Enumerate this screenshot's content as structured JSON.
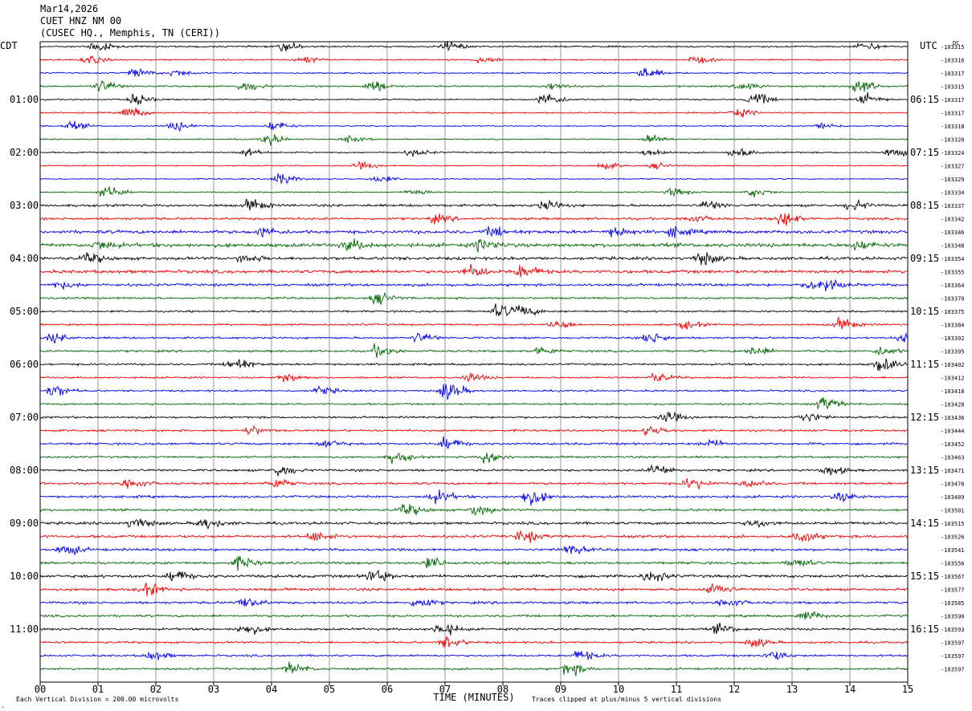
{
  "header": {
    "date": "Mar14,2026",
    "station": "CUET HNZ NM 00",
    "location": "(CUSEC HQ., Memphis, TN (CERI))"
  },
  "left_tz": "CDT",
  "right_tz": "UTC",
  "dc_label": "DC",
  "footer": {
    "scale_note": "Each Vertical Division =  200.00 microvolts",
    "clip_note": "Traces clipped at plus/minus 5 vertical divisions",
    "small_mark": "‸"
  },
  "colors": {
    "trace_cycle": [
      "#000000",
      "#ee0000",
      "#0000ee",
      "#006600"
    ],
    "grid": "#808080",
    "text": "#000000"
  },
  "chart_data": {
    "type": "line",
    "subtype": "helicorder",
    "xlabel": "TIME (MINUTES)",
    "x_range": [
      0,
      15
    ],
    "x_ticks": [
      "00",
      "01",
      "02",
      "03",
      "04",
      "05",
      "06",
      "07",
      "08",
      "09",
      "10",
      "11",
      "12",
      "13",
      "14",
      "15"
    ],
    "trace_count": 48,
    "minutes_per_trace": 15,
    "left_hour_labels": [
      "01:00",
      "02:00",
      "03:00",
      "04:00",
      "05:00",
      "06:00",
      "07:00",
      "08:00",
      "09:00",
      "10:00",
      "11:00"
    ],
    "right_hour_labels": [
      "06:15",
      "07:15",
      "08:15",
      "09:15",
      "10:15",
      "11:15",
      "12:15",
      "13:15",
      "14:15",
      "15:15",
      "16:15"
    ],
    "dc_offsets": [
      "-103315",
      "-103316",
      "-103317",
      "-103315",
      "-103317",
      "-103317",
      "-103318",
      "-103320",
      "-103324",
      "-103327",
      "-103329",
      "-103334",
      "-103337",
      "-103342",
      "-103346",
      "-103348",
      "-103354",
      "-103355",
      "-103364",
      "-103370",
      "-103375",
      "-103384",
      "-103392",
      "-103395",
      "-103402",
      "-103412",
      "-103418",
      "-103428",
      "-103436",
      "-103444",
      "-103452",
      "-103463",
      "-103471",
      "-103478",
      "-103489",
      "-103501",
      "-103515",
      "-103526",
      "-103541",
      "-103556",
      "-103567",
      "-103577",
      "-103585",
      "-103590",
      "-103593",
      "-103597",
      "-103597",
      "-103597"
    ],
    "noise_level": [
      0.8,
      0.7,
      0.7,
      0.8,
      0.7,
      0.7,
      0.6,
      0.6,
      0.7,
      0.6,
      0.6,
      0.6,
      1.2,
      1.2,
      1.6,
      1.8,
      1.5,
      1.6,
      1.3,
      1.0,
      0.9,
      0.9,
      1.0,
      1.0,
      1.0,
      0.9,
      0.9,
      0.9,
      1.0,
      1.0,
      1.1,
      1.0,
      1.1,
      1.1,
      1.2,
      1.1,
      1.3,
      1.3,
      1.2,
      1.2,
      1.4,
      1.3,
      1.2,
      1.1,
      1.1,
      1.0,
      1.0,
      1.0
    ],
    "events": [
      [
        [
          0.9,
          2.5
        ],
        [
          4.2,
          2.0
        ],
        [
          7.0,
          2.2
        ],
        [
          14.2,
          1.8
        ]
      ],
      [
        [
          0.8,
          1.8
        ],
        [
          4.5,
          1.5
        ],
        [
          7.6,
          1.5
        ],
        [
          11.3,
          1.5
        ]
      ],
      [
        [
          1.6,
          2.0
        ],
        [
          2.3,
          1.5
        ],
        [
          10.4,
          2.5
        ]
      ],
      [
        [
          1.0,
          2.8
        ],
        [
          3.5,
          2.2
        ],
        [
          5.7,
          2.5
        ],
        [
          8.8,
          1.5
        ],
        [
          12.1,
          2.0
        ],
        [
          14.1,
          3.2
        ]
      ],
      [
        [
          1.6,
          2.5
        ],
        [
          8.7,
          3.0
        ],
        [
          12.3,
          2.8
        ],
        [
          14.2,
          2.8
        ]
      ],
      [
        [
          1.5,
          2.5
        ],
        [
          12.0,
          2.0
        ]
      ],
      [
        [
          0.5,
          1.8
        ],
        [
          2.3,
          2.0
        ],
        [
          4.0,
          2.2
        ],
        [
          13.5,
          1.5
        ]
      ],
      [
        [
          3.9,
          2.5
        ],
        [
          5.3,
          1.5
        ],
        [
          10.5,
          2.0
        ]
      ],
      [
        [
          3.5,
          1.6
        ],
        [
          6.4,
          1.5
        ],
        [
          10.5,
          1.8
        ],
        [
          12.0,
          2.5
        ],
        [
          14.7,
          2.2
        ]
      ],
      [
        [
          5.5,
          1.5
        ],
        [
          9.7,
          1.5
        ],
        [
          10.6,
          1.2
        ]
      ],
      [
        [
          4.1,
          2.5
        ],
        [
          5.8,
          1.5
        ]
      ],
      [
        [
          1.1,
          3.0
        ],
        [
          6.4,
          1.5
        ],
        [
          10.9,
          1.8
        ],
        [
          12.3,
          1.8
        ]
      ],
      [
        [
          3.6,
          2.5
        ],
        [
          8.7,
          2.0
        ],
        [
          11.5,
          1.8
        ],
        [
          14.0,
          2.2
        ]
      ],
      [
        [
          6.8,
          1.6
        ],
        [
          11.2,
          1.5
        ],
        [
          12.8,
          3.2
        ]
      ],
      [
        [
          3.8,
          2.0
        ],
        [
          7.8,
          2.0
        ],
        [
          9.9,
          2.0
        ],
        [
          10.9,
          2.2
        ]
      ],
      [
        [
          1.0,
          1.8
        ],
        [
          5.3,
          2.2
        ],
        [
          7.6,
          2.5
        ],
        [
          14.1,
          1.8
        ]
      ],
      [
        [
          0.8,
          2.0
        ],
        [
          3.5,
          1.8
        ],
        [
          11.4,
          3.0
        ]
      ],
      [
        [
          7.4,
          2.5
        ],
        [
          8.3,
          2.8
        ]
      ],
      [
        [
          0.3,
          1.5
        ],
        [
          13.3,
          2.5
        ],
        [
          13.6,
          2.2
        ]
      ],
      [
        [
          5.8,
          2.5
        ]
      ],
      [
        [
          7.9,
          3.0
        ],
        [
          8.3,
          2.2
        ]
      ],
      [
        [
          8.9,
          1.8
        ],
        [
          11.1,
          1.8
        ],
        [
          13.8,
          2.5
        ]
      ],
      [
        [
          0.2,
          1.8
        ],
        [
          6.5,
          2.2
        ],
        [
          10.5,
          2.5
        ],
        [
          14.9,
          2.0
        ]
      ],
      [
        [
          5.8,
          2.5
        ],
        [
          8.6,
          1.8
        ],
        [
          12.3,
          2.0
        ],
        [
          14.5,
          1.8
        ]
      ],
      [
        [
          3.3,
          3.2
        ],
        [
          14.5,
          3.0
        ]
      ],
      [
        [
          4.2,
          2.0
        ],
        [
          7.4,
          1.8
        ],
        [
          10.6,
          2.0
        ]
      ],
      [
        [
          0.2,
          2.5
        ],
        [
          4.8,
          1.8
        ],
        [
          7.0,
          4.2
        ]
      ],
      [
        [
          13.5,
          3.0
        ]
      ],
      [
        [
          10.8,
          2.2
        ],
        [
          13.2,
          2.0
        ]
      ],
      [
        [
          3.6,
          1.8
        ],
        [
          10.5,
          2.2
        ]
      ],
      [
        [
          4.9,
          1.8
        ],
        [
          7.0,
          2.5
        ],
        [
          11.5,
          1.8
        ]
      ],
      [
        [
          6.1,
          2.2
        ],
        [
          7.7,
          2.8
        ]
      ],
      [
        [
          4.1,
          2.5
        ],
        [
          10.6,
          2.5
        ],
        [
          13.6,
          2.0
        ]
      ],
      [
        [
          1.5,
          2.5
        ],
        [
          4.0,
          2.2
        ],
        [
          11.2,
          2.5
        ],
        [
          12.2,
          1.8
        ]
      ],
      [
        [
          6.8,
          2.8
        ],
        [
          8.4,
          4.0
        ],
        [
          13.8,
          2.0
        ]
      ],
      [
        [
          6.3,
          2.5
        ],
        [
          7.5,
          2.2
        ]
      ],
      [
        [
          1.6,
          2.5
        ],
        [
          2.8,
          2.5
        ],
        [
          12.3,
          1.8
        ]
      ],
      [
        [
          4.7,
          2.0
        ],
        [
          8.3,
          2.5
        ],
        [
          13.1,
          2.5
        ]
      ],
      [
        [
          0.4,
          2.5
        ],
        [
          9.1,
          2.2
        ]
      ],
      [
        [
          3.4,
          2.5
        ],
        [
          6.7,
          2.2
        ],
        [
          13.0,
          2.0
        ]
      ],
      [
        [
          2.3,
          2.5
        ],
        [
          5.7,
          3.0
        ],
        [
          10.5,
          2.5
        ]
      ],
      [
        [
          1.8,
          2.5
        ],
        [
          11.6,
          2.5
        ]
      ],
      [
        [
          3.5,
          2.5
        ],
        [
          6.5,
          2.2
        ],
        [
          11.8,
          2.0
        ]
      ],
      [
        [
          13.2,
          2.2
        ]
      ],
      [
        [
          3.5,
          2.5
        ],
        [
          6.9,
          3.0
        ],
        [
          11.7,
          2.0
        ]
      ],
      [
        [
          7.0,
          2.5
        ],
        [
          12.3,
          2.0
        ]
      ],
      [
        [
          1.9,
          2.0
        ],
        [
          9.3,
          2.2
        ],
        [
          12.6,
          2.2
        ]
      ],
      [
        [
          4.3,
          2.5
        ],
        [
          9.1,
          2.8
        ]
      ]
    ]
  }
}
